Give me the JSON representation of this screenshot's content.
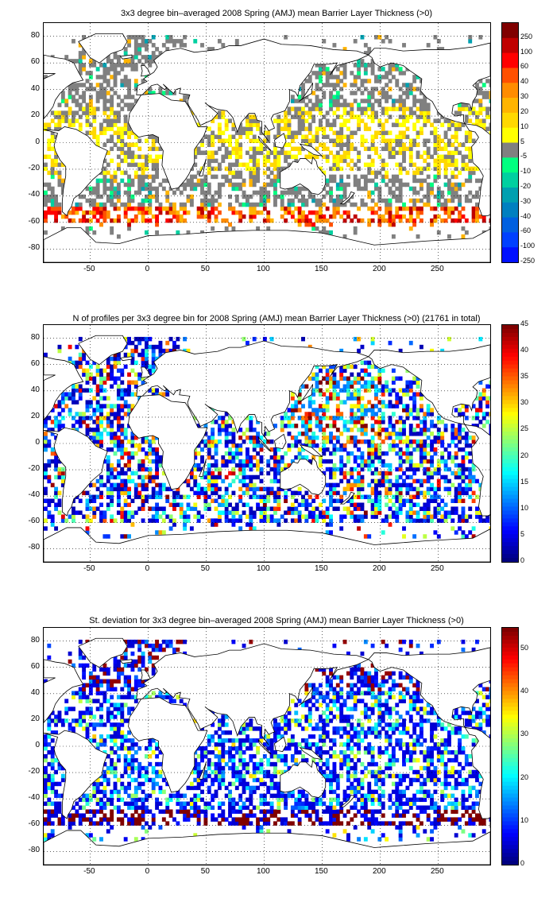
{
  "panels": [
    {
      "title": "3x3 degree bin–averaged 2008 Spring (AMJ) mean Barrier Layer Thickness (>0)",
      "colorbar": {
        "type": "discrete",
        "labels": [
          "250",
          "100",
          "60",
          "40",
          "30",
          "20",
          "10",
          "5",
          "-5",
          "-10",
          "-20",
          "-30",
          "-40",
          "-60",
          "-100",
          "-250"
        ],
        "colors": [
          "#800000",
          "#c00000",
          "#ff0000",
          "#ff5000",
          "#ff8c00",
          "#ffb400",
          "#ffd800",
          "#ffff00",
          "#808080",
          "#00ff80",
          "#00d0a0",
          "#00a0b0",
          "#0080c0",
          "#0060e0",
          "#0040ff",
          "#0010ff"
        ]
      }
    },
    {
      "title": "N of profiles per 3x3 degree bin for 2008 Spring (AMJ) mean Barrier Layer Thickness (>0) (21761 in total)",
      "colorbar": {
        "type": "continuous",
        "labels": [
          "45",
          "40",
          "35",
          "30",
          "25",
          "20",
          "15",
          "10",
          "5",
          "0"
        ]
      }
    },
    {
      "title": "St. deviation for 3x3 degree bin–averaged 2008 Spring (AMJ) mean Barrier Layer Thickness (>0)",
      "colorbar": {
        "type": "continuous",
        "labels": [
          "50",
          "40",
          "30",
          "20",
          "10",
          "0"
        ]
      }
    }
  ],
  "axes": {
    "x_ticks": [
      "-50",
      "0",
      "50",
      "100",
      "150",
      "200",
      "250"
    ],
    "y_ticks": [
      "80",
      "60",
      "40",
      "20",
      "0",
      "-20",
      "-40",
      "-60",
      "-80"
    ],
    "x_range": [
      -90,
      295
    ],
    "y_range": [
      -90,
      90
    ]
  },
  "colors": {
    "land_outline": "#000000",
    "grid": "#000000",
    "gray_fill": "#808080"
  }
}
